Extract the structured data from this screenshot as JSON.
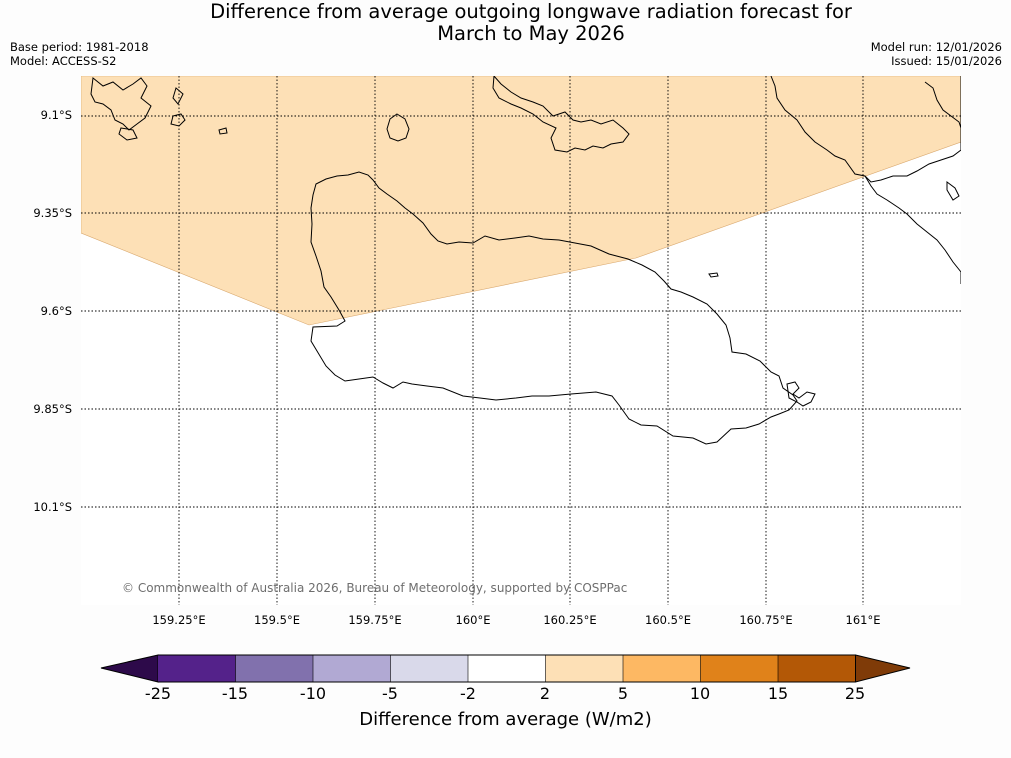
{
  "title": {
    "line1": "Difference from average outgoing longwave radiation forecast for",
    "line2": "March to May 2026"
  },
  "meta": {
    "base_period": "Base period: 1981-2018",
    "model": "Model: ACCESS-S2",
    "model_run": "Model run: 12/01/2026",
    "issued": "Issued: 15/01/2026"
  },
  "map": {
    "lat_labels": [
      "9.1°S",
      "9.35°S",
      "9.6°S",
      "9.85°S",
      "10.1°S"
    ],
    "lon_labels": [
      "159.25°E",
      "159.5°E",
      "159.75°E",
      "160°E",
      "160.25°E",
      "160.5°E",
      "160.75°E",
      "161°E"
    ],
    "anomaly_fill_color": "#fde0b6",
    "anomaly_range": "2 to 5",
    "copyright": "© Commonwealth of Australia 2026, Bureau of Meteorology, supported by COSPPac"
  },
  "colorbar": {
    "ticks": [
      "-25",
      "-15",
      "-10",
      "-5",
      "-2",
      "2",
      "5",
      "10",
      "15",
      "25"
    ],
    "colors": [
      "#2d0a4a",
      "#54228a",
      "#8171ad",
      "#b1a9d3",
      "#d9d9ea",
      "#ffffff",
      "#fde0b6",
      "#fdb863",
      "#e0821a",
      "#b35806",
      "#7f3b08"
    ],
    "label": "Difference from average (W/m2)"
  }
}
